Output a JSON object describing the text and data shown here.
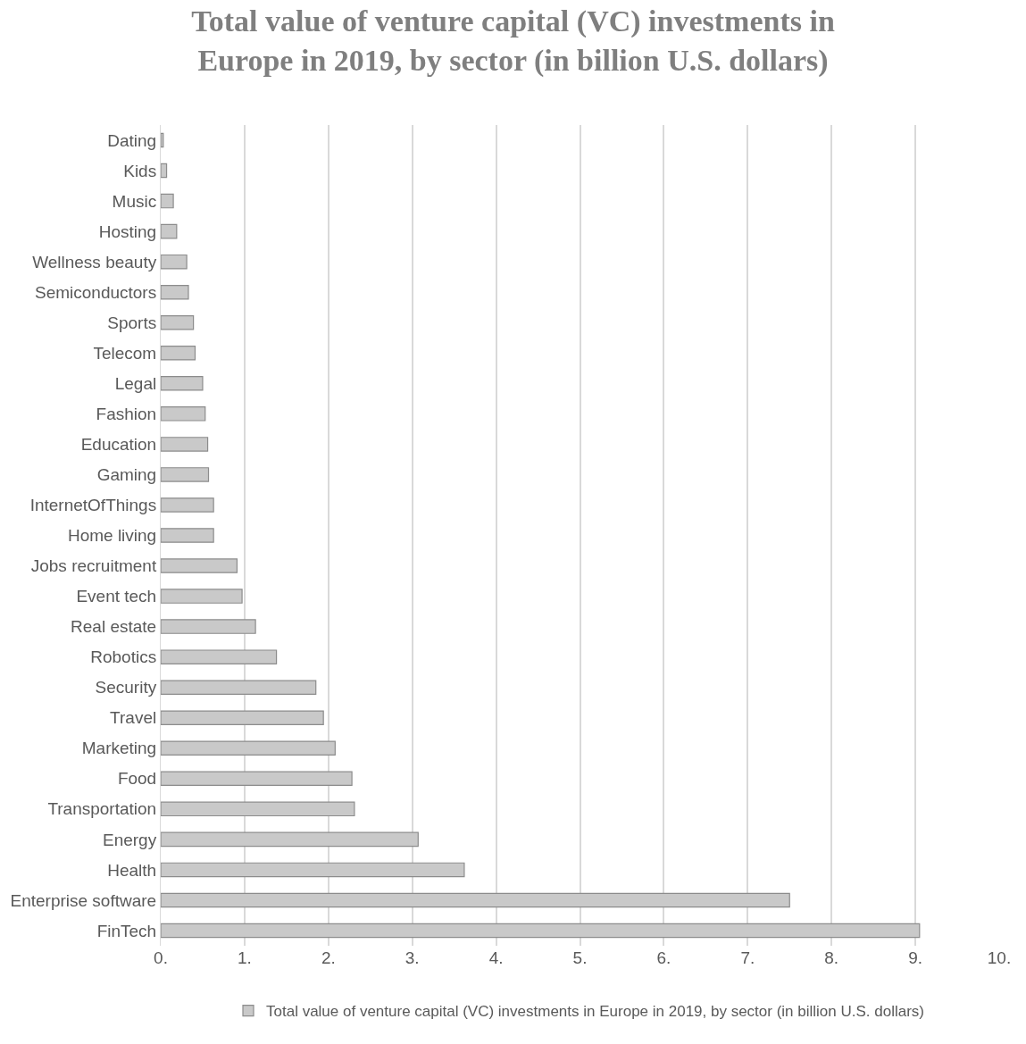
{
  "chart_data": {
    "type": "bar",
    "orientation": "horizontal",
    "title": "Total value of venture capital (VC) investments in Europe in 2019, by sector (in billion U.S. dollars)",
    "categories": [
      "Dating",
      "Kids",
      "Music",
      "Hosting",
      "Wellness beauty",
      "Semiconductors",
      "Sports",
      "Telecom",
      "Legal",
      "Fashion",
      "Education",
      "Gaming",
      "InternetOfThings",
      "Home living",
      "Jobs recruitment",
      "Event tech",
      "Real estate",
      "Robotics",
      "Security",
      "Travel",
      "Marketing",
      "Food",
      "Transportation",
      "Energy",
      "Health",
      "Enterprise software",
      "FinTech"
    ],
    "series": [
      {
        "name": "Total value of venture capital (VC) investments in Europe in 2019, by sector (in billion U.S. dollars)",
        "color": "#c9c9c9",
        "values": [
          0.03,
          0.07,
          0.15,
          0.19,
          0.31,
          0.33,
          0.39,
          0.41,
          0.5,
          0.53,
          0.56,
          0.57,
          0.63,
          0.63,
          0.91,
          0.97,
          1.13,
          1.38,
          1.85,
          1.94,
          2.08,
          2.28,
          2.31,
          3.07,
          3.62,
          7.5,
          9.05
        ]
      }
    ],
    "xlim": [
      0,
      10
    ],
    "xticks": [
      {
        "value": 0,
        "label": "0."
      },
      {
        "value": 1,
        "label": "1."
      },
      {
        "value": 2,
        "label": "2."
      },
      {
        "value": 3,
        "label": "3."
      },
      {
        "value": 4,
        "label": "4."
      },
      {
        "value": 5,
        "label": "5."
      },
      {
        "value": 6,
        "label": "6."
      },
      {
        "value": 7,
        "label": "7."
      },
      {
        "value": 8,
        "label": "8."
      },
      {
        "value": 9,
        "label": "9."
      },
      {
        "value": 10,
        "label": "10."
      }
    ],
    "grid": "x",
    "legend": "bottom"
  }
}
